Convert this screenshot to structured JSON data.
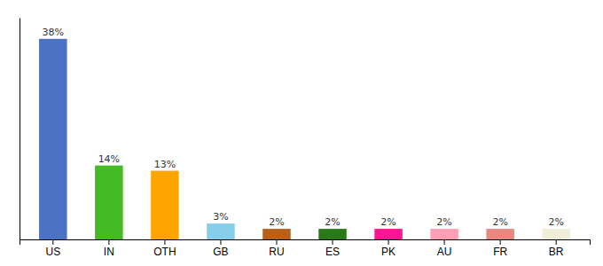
{
  "chart_data": {
    "type": "bar",
    "categories": [
      "US",
      "IN",
      "OTH",
      "GB",
      "RU",
      "ES",
      "PK",
      "AU",
      "FR",
      "BR"
    ],
    "values": [
      38,
      14,
      13,
      3,
      2,
      2,
      2,
      2,
      2,
      2
    ],
    "value_labels": [
      "38%",
      "14%",
      "13%",
      "3%",
      "2%",
      "2%",
      "2%",
      "2%",
      "2%",
      "2%"
    ],
    "colors": [
      "#4C72C4",
      "#44BB22",
      "#FFA500",
      "#87CEEB",
      "#B8601A",
      "#2A7A1A",
      "#FF1493",
      "#FF9EB5",
      "#E88880",
      "#F0EDD8"
    ],
    "ylim": [
      0,
      42
    ],
    "data_labels": true,
    "tick_labels": "x"
  }
}
